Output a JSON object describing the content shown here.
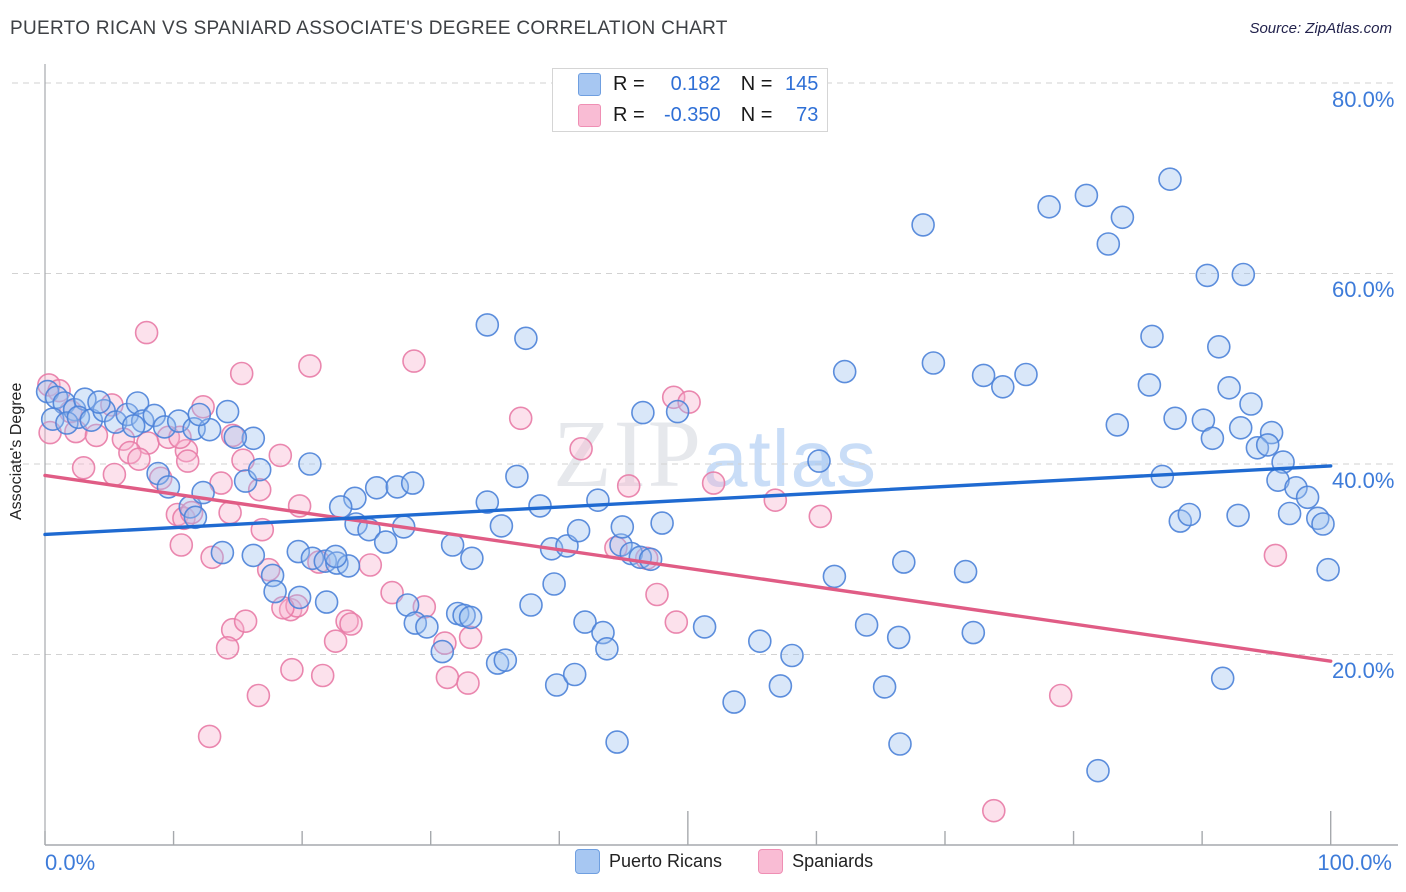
{
  "title": "PUERTO RICAN VS SPANIARD ASSOCIATE'S DEGREE CORRELATION CHART",
  "source": "Source: ZipAtlas.com",
  "y_axis_label": "Associate's Degree",
  "watermark": {
    "zip": "ZIP",
    "atlas": "atlas"
  },
  "legend_box": {
    "rows": [
      {
        "series": "Puerto Ricans",
        "r_label": "R =",
        "r_value": "0.182",
        "n_label": "N =",
        "n_value": "145"
      },
      {
        "series": "Spaniards",
        "r_label": "R =",
        "r_value": "-0.350",
        "n_label": "N =",
        "n_value": "73"
      }
    ]
  },
  "bottom_legend": [
    {
      "label": "Puerto Ricans"
    },
    {
      "label": "Spaniards"
    }
  ],
  "axis": {
    "y_tick_labels": [
      "80.0%",
      "60.0%",
      "40.0%",
      "20.0%"
    ],
    "x_min_label": "0.0%",
    "x_max_label": "100.0%"
  },
  "colors": {
    "blue_fill": "#9cc0f0",
    "blue_stroke": "#4b82d8",
    "pink_fill": "#f7b1cc",
    "pink_stroke": "#e87ba6",
    "blue_trend": "#1f6ad1",
    "pink_trend": "#e05c85",
    "grid": "#d2d2d2",
    "axis": "#a6a9ad",
    "tick": "#a6a9ad",
    "tick_label": "#3d7bd9"
  },
  "chart_data": {
    "type": "scatter",
    "title": "PUERTO RICAN VS SPANIARD ASSOCIATE'S DEGREE CORRELATION CHART",
    "xlabel": "",
    "ylabel": "Associate's Degree",
    "xlim": [
      0,
      100
    ],
    "ylim": [
      0,
      82
    ],
    "x_ticks_pct": [
      0,
      10,
      20,
      30,
      40,
      50,
      60,
      70,
      80,
      90,
      100
    ],
    "y_gridlines_pct": [
      80,
      60,
      40,
      20
    ],
    "grid": "dashed-horizontal",
    "legend_position": "top-center",
    "point_radius": 11,
    "series": [
      {
        "name": "Puerto Ricans",
        "R": 0.182,
        "N": 145,
        "trend": {
          "x1": 0,
          "y1": 32.6,
          "x2": 100,
          "y2": 39.8
        },
        "points": [
          [
            0.2,
            47.6
          ],
          [
            0.9,
            47.0
          ],
          [
            1.5,
            46.4
          ],
          [
            2.3,
            45.7
          ],
          [
            3.1,
            46.8
          ],
          [
            0.6,
            44.7
          ],
          [
            1.7,
            44.3
          ],
          [
            2.6,
            44.9
          ],
          [
            3.6,
            44.6
          ],
          [
            4.6,
            45.6
          ],
          [
            5.5,
            44.4
          ],
          [
            6.4,
            45.2
          ],
          [
            7.2,
            46.4
          ],
          [
            7.6,
            44.5
          ],
          [
            8.5,
            45.1
          ],
          [
            9.3,
            43.9
          ],
          [
            10.4,
            44.5
          ],
          [
            11.6,
            43.7
          ],
          [
            12.8,
            43.6
          ],
          [
            14.2,
            45.5
          ],
          [
            16.2,
            42.7
          ],
          [
            8.8,
            39.0
          ],
          [
            9.6,
            37.6
          ],
          [
            11.3,
            35.5
          ],
          [
            11.7,
            34.4
          ],
          [
            12.3,
            37.0
          ],
          [
            15.6,
            38.2
          ],
          [
            13.8,
            30.7
          ],
          [
            16.2,
            30.4
          ],
          [
            17.7,
            28.3
          ],
          [
            19.7,
            30.8
          ],
          [
            20.8,
            30.1
          ],
          [
            21.8,
            29.8
          ],
          [
            22.7,
            29.6
          ],
          [
            23.6,
            29.3
          ],
          [
            16.7,
            39.4
          ],
          [
            20.6,
            40.0
          ],
          [
            24.1,
            36.4
          ],
          [
            25.8,
            37.5
          ],
          [
            27.4,
            37.6
          ],
          [
            28.6,
            38.0
          ],
          [
            24.2,
            33.7
          ],
          [
            25.2,
            33.1
          ],
          [
            27.9,
            33.4
          ],
          [
            31.7,
            31.5
          ],
          [
            33.2,
            30.1
          ],
          [
            19.8,
            26.0
          ],
          [
            21.9,
            25.5
          ],
          [
            28.2,
            25.2
          ],
          [
            28.8,
            23.3
          ],
          [
            29.7,
            22.9
          ],
          [
            30.9,
            20.3
          ],
          [
            32.1,
            24.3
          ],
          [
            32.6,
            24.1
          ],
          [
            33.1,
            23.9
          ],
          [
            22.6,
            30.3
          ],
          [
            17.9,
            26.6
          ],
          [
            34.4,
            54.6
          ],
          [
            37.4,
            53.2
          ],
          [
            34.4,
            36.0
          ],
          [
            36.7,
            38.7
          ],
          [
            38.5,
            35.6
          ],
          [
            39.4,
            31.1
          ],
          [
            40.6,
            31.4
          ],
          [
            41.5,
            33.0
          ],
          [
            44.8,
            31.5
          ],
          [
            45.6,
            30.6
          ],
          [
            46.3,
            30.2
          ],
          [
            47.1,
            30.0
          ],
          [
            46.5,
            45.4
          ],
          [
            49.2,
            45.5
          ],
          [
            43.0,
            36.2
          ],
          [
            44.9,
            33.4
          ],
          [
            37.8,
            25.2
          ],
          [
            39.6,
            27.4
          ],
          [
            42.0,
            23.4
          ],
          [
            43.4,
            22.3
          ],
          [
            35.2,
            19.1
          ],
          [
            35.8,
            19.4
          ],
          [
            39.8,
            16.8
          ],
          [
            41.2,
            17.9
          ],
          [
            43.7,
            20.6
          ],
          [
            44.5,
            10.8
          ],
          [
            51.3,
            22.9
          ],
          [
            53.6,
            15.0
          ],
          [
            55.6,
            21.4
          ],
          [
            57.2,
            16.7
          ],
          [
            58.1,
            19.9
          ],
          [
            61.4,
            28.2
          ],
          [
            65.3,
            16.6
          ],
          [
            66.5,
            10.6
          ],
          [
            66.4,
            21.8
          ],
          [
            60.2,
            40.3
          ],
          [
            62.2,
            49.7
          ],
          [
            66.8,
            29.7
          ],
          [
            63.9,
            23.1
          ],
          [
            68.3,
            65.1
          ],
          [
            78.1,
            67.0
          ],
          [
            81.0,
            68.2
          ],
          [
            83.8,
            65.9
          ],
          [
            82.7,
            63.1
          ],
          [
            87.5,
            69.9
          ],
          [
            90.4,
            59.8
          ],
          [
            93.2,
            59.9
          ],
          [
            69.1,
            50.6
          ],
          [
            73.0,
            49.3
          ],
          [
            74.5,
            48.1
          ],
          [
            76.3,
            49.4
          ],
          [
            86.1,
            53.4
          ],
          [
            91.3,
            52.3
          ],
          [
            85.9,
            48.3
          ],
          [
            92.1,
            48.0
          ],
          [
            93.8,
            46.3
          ],
          [
            83.4,
            44.1
          ],
          [
            87.9,
            44.8
          ],
          [
            90.1,
            44.6
          ],
          [
            90.8,
            42.7
          ],
          [
            95.4,
            43.3
          ],
          [
            94.3,
            41.7
          ],
          [
            95.1,
            42.0
          ],
          [
            96.3,
            40.2
          ],
          [
            86.9,
            38.7
          ],
          [
            95.9,
            38.3
          ],
          [
            97.3,
            37.5
          ],
          [
            98.2,
            36.5
          ],
          [
            88.3,
            34.0
          ],
          [
            89.0,
            34.7
          ],
          [
            92.8,
            34.6
          ],
          [
            99.0,
            34.3
          ],
          [
            99.4,
            33.7
          ],
          [
            99.8,
            28.9
          ],
          [
            71.6,
            28.7
          ],
          [
            72.2,
            22.3
          ],
          [
            91.6,
            17.5
          ],
          [
            81.9,
            7.8
          ],
          [
            4.2,
            46.5
          ],
          [
            6.9,
            44.0
          ],
          [
            12.0,
            45.2
          ],
          [
            14.8,
            42.8
          ],
          [
            23.0,
            35.5
          ],
          [
            26.5,
            31.8
          ],
          [
            35.5,
            33.5
          ],
          [
            48.0,
            33.8
          ],
          [
            93.0,
            43.8
          ],
          [
            96.8,
            34.8
          ]
        ]
      },
      {
        "name": "Spaniards",
        "R": -0.35,
        "N": 73,
        "trend": {
          "x1": 0,
          "y1": 38.8,
          "x2": 100,
          "y2": 19.3
        },
        "points": [
          [
            7.9,
            53.8
          ],
          [
            15.3,
            49.5
          ],
          [
            20.6,
            50.3
          ],
          [
            28.7,
            50.8
          ],
          [
            37.0,
            44.8
          ],
          [
            41.7,
            41.6
          ],
          [
            48.9,
            47.0
          ],
          [
            50.1,
            46.5
          ],
          [
            45.4,
            37.7
          ],
          [
            52.0,
            38.0
          ],
          [
            56.8,
            36.2
          ],
          [
            60.3,
            34.5
          ],
          [
            0.3,
            48.3
          ],
          [
            1.1,
            47.7
          ],
          [
            0.4,
            43.3
          ],
          [
            2.4,
            43.4
          ],
          [
            4.0,
            43.0
          ],
          [
            5.2,
            46.2
          ],
          [
            6.1,
            42.6
          ],
          [
            8.0,
            42.2
          ],
          [
            9.6,
            42.8
          ],
          [
            11.0,
            41.4
          ],
          [
            12.3,
            46.0
          ],
          [
            10.5,
            42.8
          ],
          [
            14.6,
            43.0
          ],
          [
            11.1,
            40.3
          ],
          [
            15.4,
            40.4
          ],
          [
            6.6,
            41.2
          ],
          [
            5.4,
            38.9
          ],
          [
            3.0,
            39.6
          ],
          [
            16.7,
            37.3
          ],
          [
            10.3,
            34.7
          ],
          [
            10.8,
            34.3
          ],
          [
            11.4,
            34.9
          ],
          [
            14.4,
            34.9
          ],
          [
            10.6,
            31.5
          ],
          [
            13.0,
            30.2
          ],
          [
            16.9,
            33.1
          ],
          [
            17.4,
            28.9
          ],
          [
            21.3,
            29.7
          ],
          [
            25.3,
            29.4
          ],
          [
            19.1,
            24.7
          ],
          [
            19.6,
            25.1
          ],
          [
            44.4,
            31.2
          ],
          [
            46.8,
            30.1
          ],
          [
            47.6,
            26.3
          ],
          [
            49.1,
            23.4
          ],
          [
            12.8,
            11.4
          ],
          [
            14.6,
            22.6
          ],
          [
            15.6,
            23.5
          ],
          [
            14.2,
            20.7
          ],
          [
            16.6,
            15.7
          ],
          [
            18.5,
            24.9
          ],
          [
            19.2,
            18.4
          ],
          [
            21.6,
            17.8
          ],
          [
            22.6,
            21.4
          ],
          [
            23.5,
            23.5
          ],
          [
            23.8,
            23.2
          ],
          [
            31.1,
            21.2
          ],
          [
            33.1,
            21.8
          ],
          [
            31.3,
            17.6
          ],
          [
            32.9,
            17.0
          ],
          [
            95.7,
            30.4
          ],
          [
            79.0,
            15.7
          ],
          [
            73.8,
            3.6
          ],
          [
            2.0,
            45.5
          ],
          [
            7.3,
            40.5
          ],
          [
            9.0,
            38.5
          ],
          [
            13.7,
            38.0
          ],
          [
            18.3,
            40.9
          ],
          [
            19.8,
            35.6
          ],
          [
            27.0,
            26.5
          ],
          [
            29.5,
            25.0
          ]
        ]
      }
    ]
  }
}
